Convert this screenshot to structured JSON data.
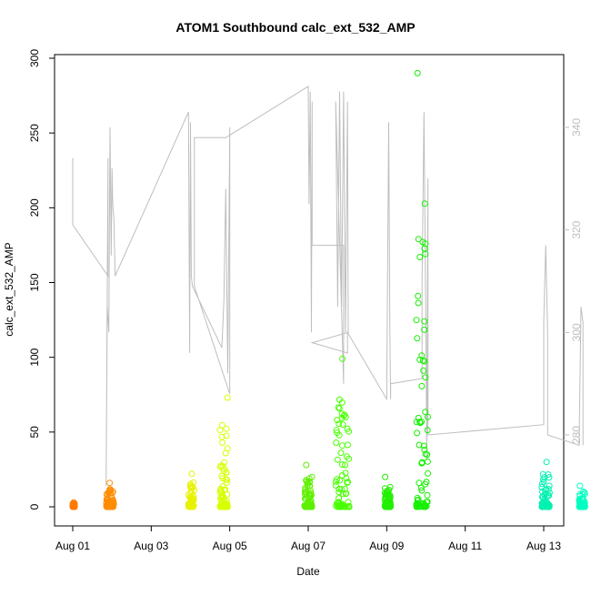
{
  "chart_data": {
    "type": "scatter",
    "title": "ATOM1 Southbound calc_ext_532_AMP",
    "xlabel": "Date",
    "ylabel": "calc_ext_532_AMP",
    "x_ticks": [
      "Aug 01",
      "Aug 03",
      "Aug 05",
      "Aug 07",
      "Aug 09",
      "Aug 11",
      "Aug 13"
    ],
    "xlim_days": [
      0.0,
      12.4
    ],
    "ylim": [
      -10,
      300
    ],
    "y_ticks": [
      0,
      50,
      100,
      150,
      200,
      250,
      300
    ],
    "y2_ticks": [
      280,
      300,
      320,
      340
    ],
    "y2lim": [
      263,
      351
    ],
    "grid": false,
    "legend": "none",
    "point_clusters": [
      {
        "day_start": 0.0,
        "day_end": 0.05,
        "max": 3,
        "color": "#FF7A00"
      },
      {
        "day_start": 0.85,
        "day_end": 1.05,
        "max": 16,
        "color": "#FF8C00"
      },
      {
        "day_start": 2.95,
        "day_end": 3.1,
        "max": 22,
        "color": "#E6F200"
      },
      {
        "day_start": 3.75,
        "day_end": 3.95,
        "max": 73,
        "color": "#D8FF00"
      },
      {
        "day_start": 5.9,
        "day_end": 6.1,
        "max": 28,
        "color": "#5EF000"
      },
      {
        "day_start": 6.7,
        "day_end": 7.05,
        "max": 99,
        "color": "#48FF00"
      },
      {
        "day_start": 7.95,
        "day_end": 8.1,
        "max": 20,
        "color": "#22F000"
      },
      {
        "day_start": 8.75,
        "day_end": 9.05,
        "max": 290,
        "color": "#14F000"
      },
      {
        "day_start": 11.95,
        "day_end": 12.15,
        "max": 30,
        "color": "#00F2B0"
      },
      {
        "day_start": 12.9,
        "day_end": 13.05,
        "max": 14,
        "color": "#00FFC0"
      }
    ],
    "secondary_series_color": "#BEBEBE",
    "secondary_series": [
      [
        0.0,
        334
      ],
      [
        0.0,
        330
      ],
      [
        0.0,
        321
      ],
      [
        0.9,
        311
      ],
      [
        0.9,
        334
      ],
      [
        0.85,
        270
      ],
      [
        0.88,
        305
      ],
      [
        0.92,
        300
      ],
      [
        0.95,
        340
      ],
      [
        0.98,
        315
      ],
      [
        1.0,
        332
      ],
      [
        1.02,
        325
      ],
      [
        1.05,
        322
      ],
      [
        1.08,
        311
      ],
      [
        2.95,
        343
      ],
      [
        2.98,
        296
      ],
      [
        3.0,
        341
      ],
      [
        3.02,
        311
      ],
      [
        3.05,
        309
      ],
      [
        3.8,
        297
      ],
      [
        3.85,
        306
      ],
      [
        3.9,
        328
      ],
      [
        3.95,
        292
      ],
      [
        4.0,
        340
      ],
      [
        4.0,
        288
      ],
      [
        3.1,
        309
      ],
      [
        3.1,
        338
      ],
      [
        3.9,
        338
      ],
      [
        6.0,
        348
      ],
      [
        6.02,
        325
      ],
      [
        6.05,
        347
      ],
      [
        6.08,
        300
      ],
      [
        6.1,
        345
      ],
      [
        6.1,
        317
      ],
      [
        6.9,
        317
      ],
      [
        6.9,
        290
      ],
      [
        6.7,
        345
      ],
      [
        6.75,
        305
      ],
      [
        6.8,
        347
      ],
      [
        6.85,
        305
      ],
      [
        6.9,
        347
      ],
      [
        6.95,
        300
      ],
      [
        7.0,
        345
      ],
      [
        7.02,
        300
      ],
      [
        6.1,
        298
      ],
      [
        7.0,
        296
      ],
      [
        7.0,
        300
      ],
      [
        8.0,
        287
      ],
      [
        8.05,
        341
      ],
      [
        8.08,
        300
      ],
      [
        8.1,
        287
      ],
      [
        8.1,
        290
      ],
      [
        8.9,
        291
      ],
      [
        8.9,
        310
      ],
      [
        8.95,
        343
      ],
      [
        9.0,
        298
      ],
      [
        9.02,
        275
      ],
      [
        9.05,
        330
      ],
      [
        9.05,
        280
      ],
      [
        12.0,
        282
      ],
      [
        12.0,
        302
      ],
      [
        12.05,
        317
      ],
      [
        12.1,
        300
      ],
      [
        12.1,
        280
      ],
      [
        12.9,
        278
      ],
      [
        12.95,
        305
      ],
      [
        13.0,
        302
      ],
      [
        13.0,
        278
      ]
    ]
  }
}
